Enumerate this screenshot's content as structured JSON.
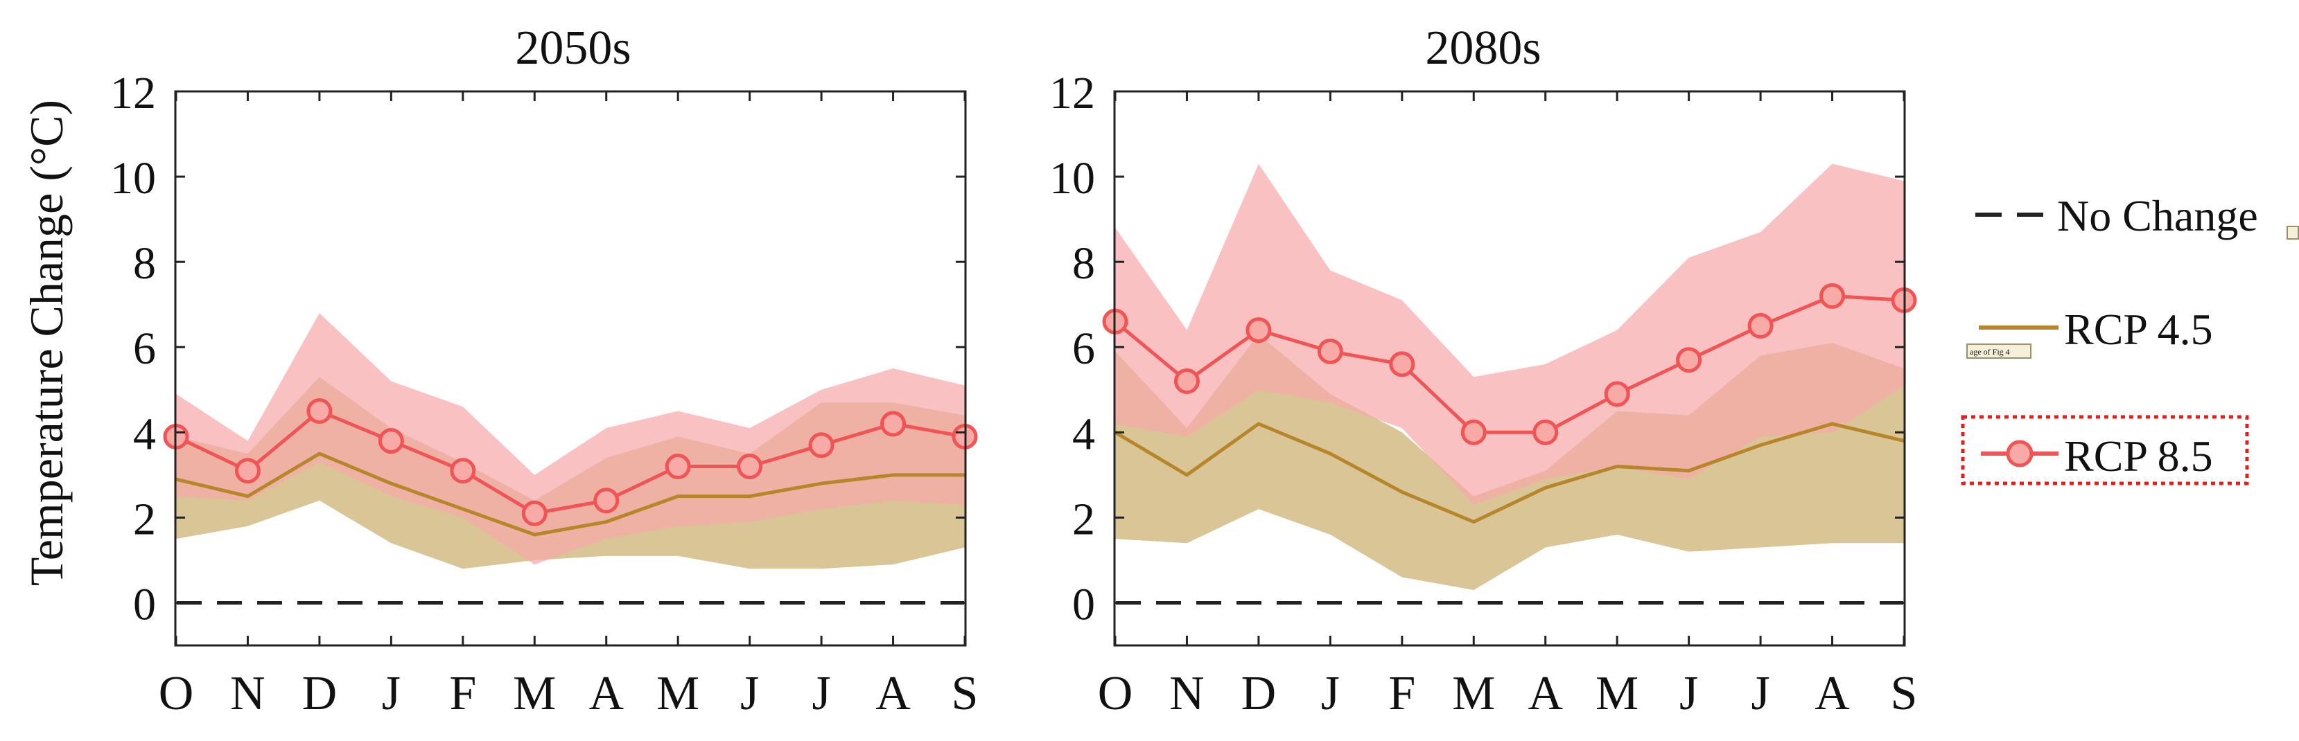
{
  "chart_data": {
    "ylabel": "Temperature Change (°C)",
    "ylim": [
      -1,
      12
    ],
    "yticks": [
      0,
      2,
      4,
      6,
      8,
      10,
      12
    ],
    "categories": [
      "O",
      "N",
      "D",
      "J",
      "F",
      "M",
      "A",
      "M",
      "J",
      "J",
      "A",
      "S"
    ],
    "legend": {
      "no_change": "No Change",
      "rcp45": "RCP 4.5",
      "rcp85": "RCP 8.5",
      "artifact_text": "age of Fig 4"
    },
    "colors": {
      "rcp45_line": "#b8862a",
      "rcp45_band": "#d9c596",
      "rcp85_line": "#f05454",
      "rcp85_band": "#f6a9a9",
      "rcp85_marker_fill": "#f7aaa6",
      "no_change": "#222222",
      "highlight_box": "#e02020"
    },
    "panels": [
      {
        "title": "2050s",
        "type": "line",
        "series": [
          {
            "name": "RCP 4.5",
            "values": [
              2.9,
              2.5,
              3.5,
              2.8,
              2.2,
              1.6,
              1.9,
              2.5,
              2.5,
              2.8,
              3.0,
              3.0
            ],
            "lower": [
              1.5,
              1.8,
              2.4,
              1.4,
              0.8,
              1.0,
              1.1,
              1.1,
              0.8,
              0.8,
              0.9,
              1.3
            ],
            "upper": [
              3.9,
              3.5,
              5.3,
              4.1,
              3.3,
              2.4,
              3.4,
              3.9,
              3.5,
              4.7,
              4.7,
              4.4
            ]
          },
          {
            "name": "RCP 8.5",
            "values": [
              3.9,
              3.1,
              4.5,
              3.8,
              3.1,
              2.1,
              2.4,
              3.2,
              3.2,
              3.7,
              4.2,
              3.9
            ],
            "lower": [
              2.5,
              2.4,
              3.3,
              2.5,
              2.0,
              0.9,
              1.5,
              1.8,
              1.9,
              2.2,
              2.4,
              2.3
            ],
            "upper": [
              4.9,
              3.8,
              6.8,
              5.2,
              4.6,
              3.0,
              4.1,
              4.5,
              4.1,
              5.0,
              5.5,
              5.1
            ]
          }
        ]
      },
      {
        "title": "2080s",
        "type": "line",
        "series": [
          {
            "name": "RCP 4.5",
            "values": [
              4.0,
              3.0,
              4.2,
              3.5,
              2.6,
              1.9,
              2.7,
              3.2,
              3.1,
              3.7,
              4.2,
              3.8
            ],
            "lower": [
              1.5,
              1.4,
              2.2,
              1.6,
              0.6,
              0.3,
              1.3,
              1.6,
              1.2,
              1.3,
              1.4,
              1.4
            ],
            "upper": [
              5.9,
              4.1,
              6.3,
              4.9,
              4.0,
              2.5,
              3.1,
              4.5,
              4.4,
              5.8,
              6.1,
              5.5
            ]
          },
          {
            "name": "RCP 8.5",
            "values": [
              6.6,
              5.2,
              6.4,
              5.9,
              5.6,
              4.0,
              4.0,
              4.9,
              5.7,
              6.5,
              7.2,
              7.1
            ],
            "lower": [
              4.2,
              3.9,
              5.0,
              4.7,
              4.1,
              2.3,
              2.9,
              3.2,
              2.9,
              3.9,
              4.0,
              5.1
            ],
            "upper": [
              8.8,
              6.4,
              10.3,
              7.8,
              7.1,
              5.3,
              5.6,
              6.4,
              8.1,
              8.7,
              10.3,
              9.9
            ]
          }
        ]
      }
    ]
  }
}
